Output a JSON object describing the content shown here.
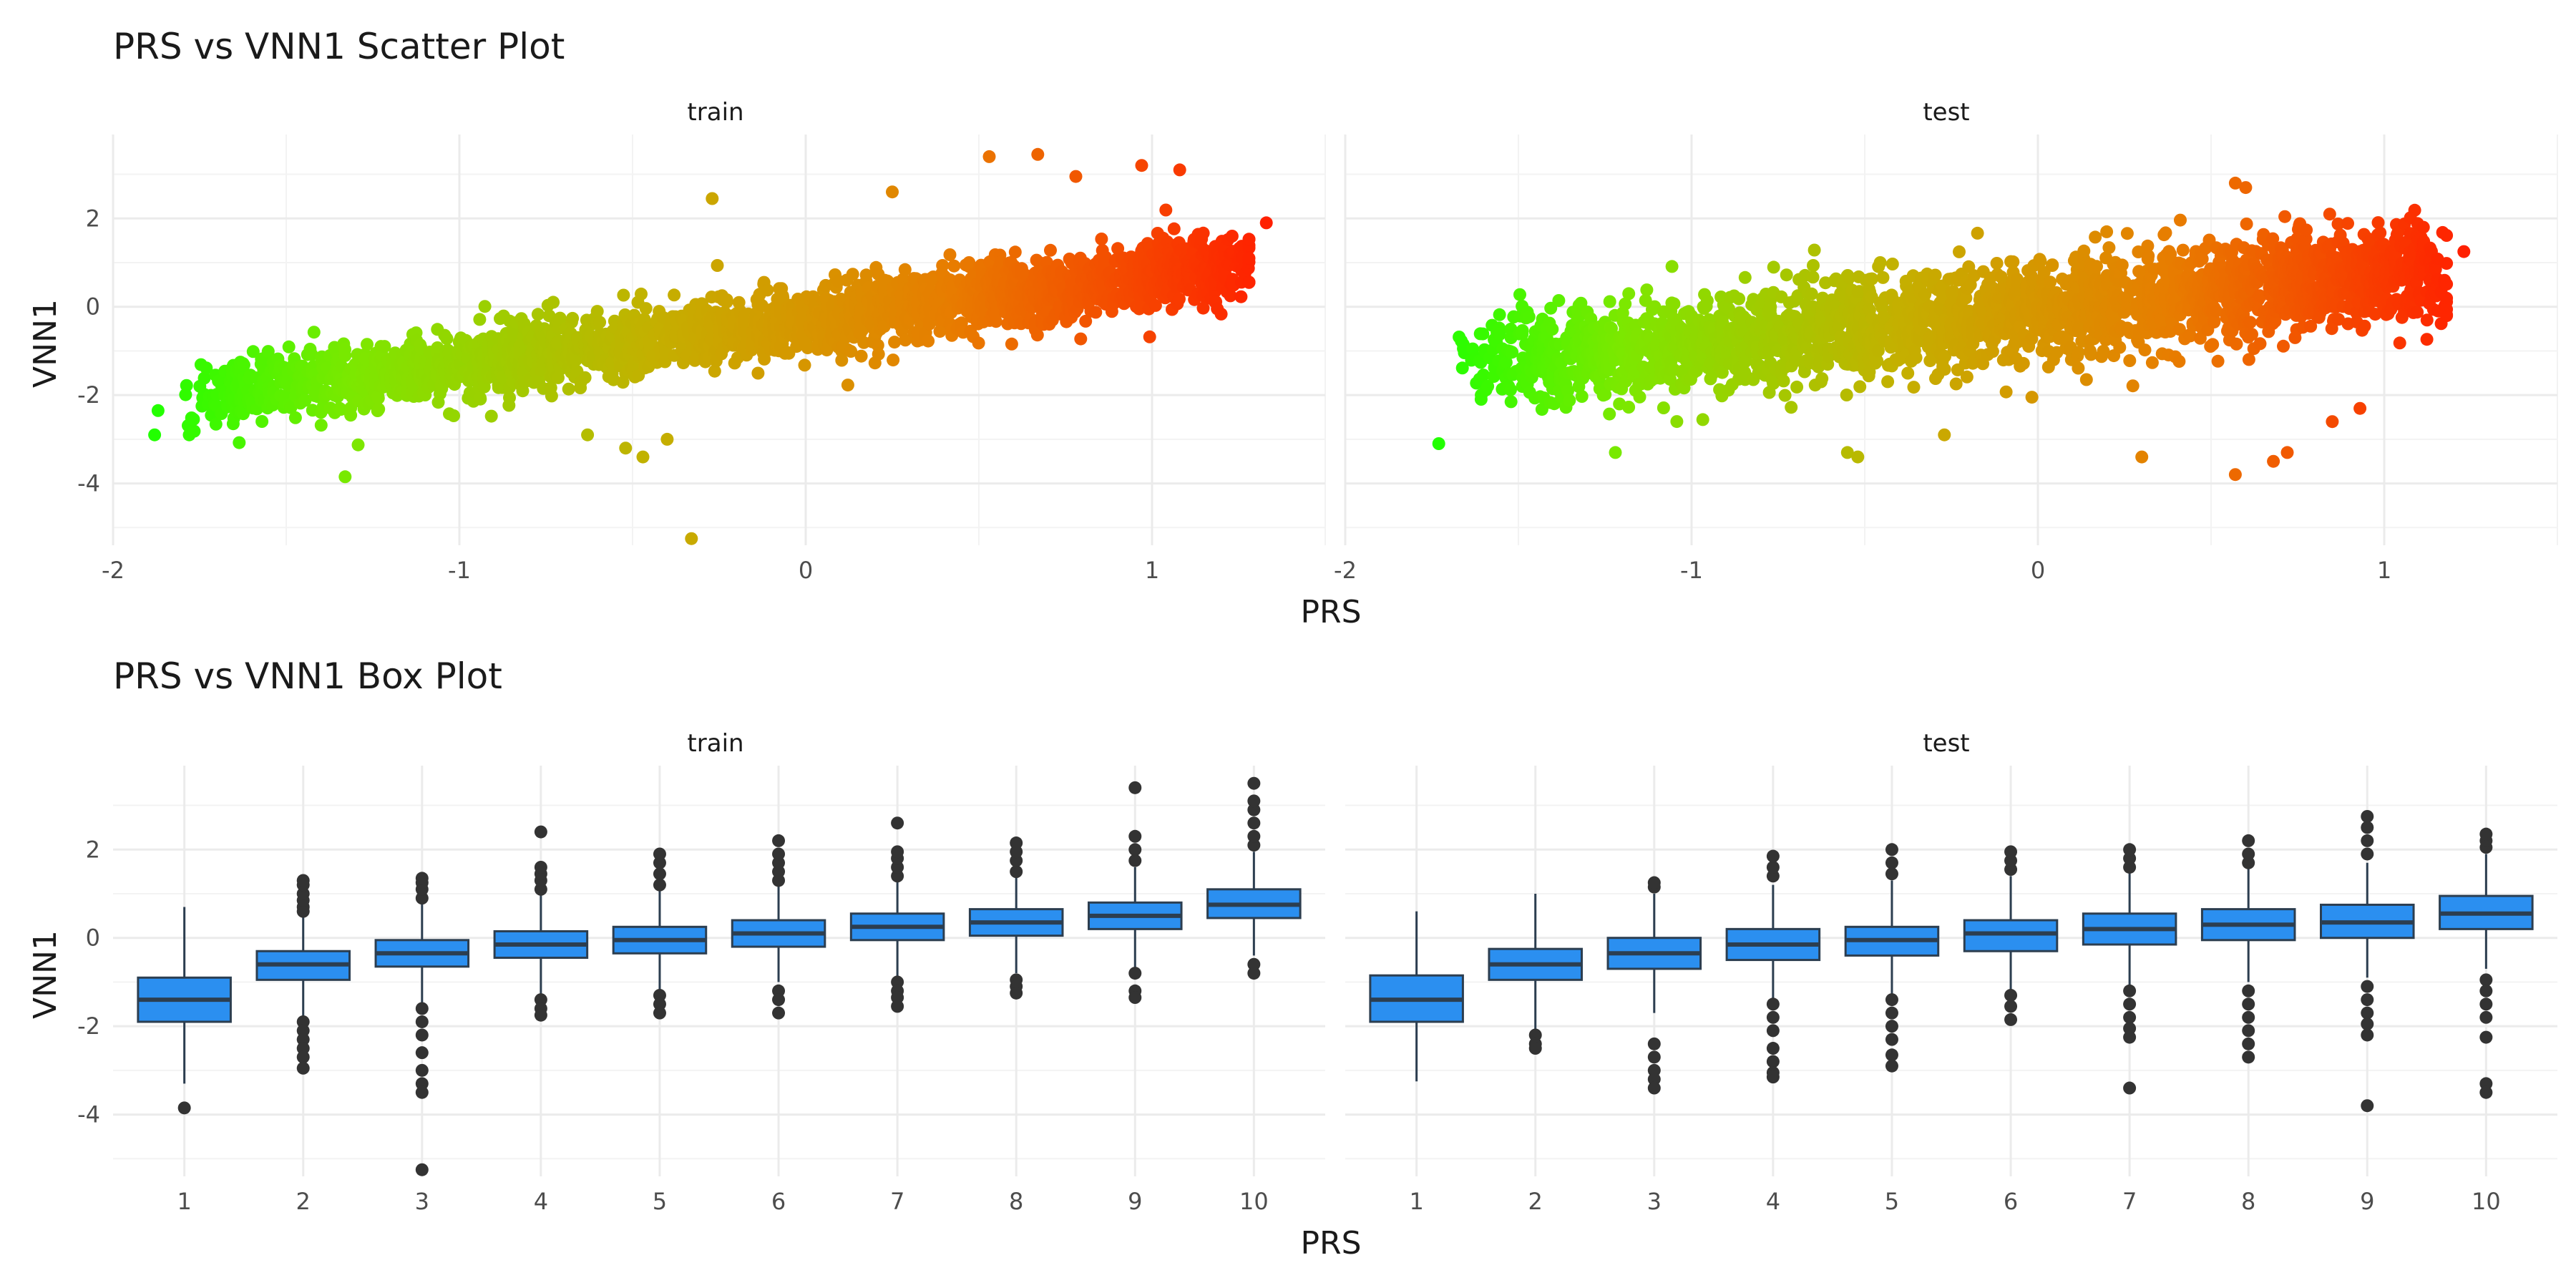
{
  "chart_data": [
    {
      "type": "scatter",
      "title": "PRS vs VNN1 Scatter Plot",
      "xlabel": "PRS",
      "ylabel": "VNN1",
      "grid": true,
      "legend": "none",
      "facets": [
        {
          "label": "train",
          "xlim": [
            -2.0,
            1.5
          ],
          "ylim": [
            -5.4,
            3.9
          ],
          "x_ticks": [
            "-2",
            "-1",
            "0",
            "1"
          ],
          "y_ticks": [
            "2",
            "0",
            "-2",
            "-4"
          ],
          "trend": {
            "slope": 1.0,
            "intercept": -0.3,
            "spread": 0.38
          },
          "x_range": [
            -1.88,
            1.33
          ],
          "outliers": [
            {
              "x": -0.33,
              "y": -5.25
            },
            {
              "x": -1.33,
              "y": -3.85
            },
            {
              "x": -0.47,
              "y": -3.4
            },
            {
              "x": -0.52,
              "y": -3.2
            },
            {
              "x": -0.4,
              "y": -3.0
            },
            {
              "x": -0.63,
              "y": -2.9
            },
            {
              "x": 0.53,
              "y": 3.4
            },
            {
              "x": 0.67,
              "y": 3.45
            },
            {
              "x": 0.97,
              "y": 3.2
            },
            {
              "x": 1.08,
              "y": 3.1
            },
            {
              "x": 0.78,
              "y": 2.95
            },
            {
              "x": -0.27,
              "y": 2.45
            },
            {
              "x": 0.25,
              "y": 2.6
            },
            {
              "x": 1.33,
              "y": 1.9
            },
            {
              "x": -1.87,
              "y": -2.35
            },
            {
              "x": -1.88,
              "y": -2.9
            },
            {
              "x": -1.78,
              "y": -2.9
            }
          ]
        },
        {
          "label": "test",
          "xlim": [
            -2.0,
            1.5
          ],
          "ylim": [
            -5.4,
            3.9
          ],
          "x_ticks": [
            "-2",
            "-1",
            "0",
            "1"
          ],
          "y_ticks": [
            "2",
            "0",
            "-2",
            "-4"
          ],
          "trend": {
            "slope": 0.75,
            "intercept": -0.05,
            "spread": 0.55
          },
          "x_range": [
            -1.73,
            1.23
          ],
          "outliers": [
            {
              "x": 0.57,
              "y": -3.8
            },
            {
              "x": 0.68,
              "y": -3.5
            },
            {
              "x": 0.72,
              "y": -3.3
            },
            {
              "x": 0.3,
              "y": -3.4
            },
            {
              "x": -0.52,
              "y": -3.4
            },
            {
              "x": -0.55,
              "y": -3.3
            },
            {
              "x": -0.27,
              "y": -2.9
            },
            {
              "x": -1.22,
              "y": -3.3
            },
            {
              "x": -1.73,
              "y": -3.1
            },
            {
              "x": 0.6,
              "y": 2.7
            },
            {
              "x": 0.57,
              "y": 2.8
            },
            {
              "x": 1.23,
              "y": 1.25
            },
            {
              "x": 0.93,
              "y": -2.3
            },
            {
              "x": 0.85,
              "y": -2.6
            }
          ]
        }
      ]
    },
    {
      "type": "box",
      "title": "PRS vs VNN1 Box Plot",
      "xlabel": "PRS",
      "ylabel": "VNN1",
      "grid": true,
      "legend": "none",
      "colors": {
        "box_fill": "#2b8ff0",
        "box_stroke": "#2c3e50",
        "outlier": "#333333"
      },
      "categories": [
        "1",
        "2",
        "3",
        "4",
        "5",
        "6",
        "7",
        "8",
        "9",
        "10"
      ],
      "facets": [
        {
          "label": "train",
          "ylim": [
            -5.4,
            3.9
          ],
          "y_ticks": [
            "2",
            "0",
            "-2",
            "-4"
          ],
          "boxes": [
            {
              "q1": -1.9,
              "median": -1.4,
              "q3": -0.9,
              "lower": -3.3,
              "upper": 0.7,
              "outliers": [
                -3.85
              ]
            },
            {
              "q1": -0.95,
              "median": -0.6,
              "q3": -0.3,
              "lower": -1.8,
              "upper": 0.5,
              "outliers": [
                0.6,
                0.7,
                0.85,
                1.0,
                1.2,
                1.3,
                -1.9,
                -2.1,
                -2.3,
                -2.5,
                -2.7,
                -2.95
              ]
            },
            {
              "q1": -0.65,
              "median": -0.35,
              "q3": -0.05,
              "lower": -1.5,
              "upper": 0.8,
              "outliers": [
                0.9,
                1.1,
                1.25,
                1.35,
                -1.6,
                -1.9,
                -2.2,
                -2.6,
                -3.0,
                -3.3,
                -3.5,
                -5.25
              ]
            },
            {
              "q1": -0.45,
              "median": -0.15,
              "q3": 0.15,
              "lower": -1.3,
              "upper": 1.0,
              "outliers": [
                1.1,
                1.3,
                1.45,
                1.6,
                2.4,
                -1.4,
                -1.6,
                -1.75
              ]
            },
            {
              "q1": -0.35,
              "median": -0.05,
              "q3": 0.25,
              "lower": -1.2,
              "upper": 1.1,
              "outliers": [
                1.2,
                1.45,
                1.7,
                1.9,
                -1.3,
                -1.5,
                -1.7
              ]
            },
            {
              "q1": -0.2,
              "median": 0.1,
              "q3": 0.4,
              "lower": -1.0,
              "upper": 1.2,
              "outliers": [
                1.3,
                1.5,
                1.7,
                1.9,
                2.2,
                -1.2,
                -1.4,
                -1.7
              ]
            },
            {
              "q1": -0.05,
              "median": 0.25,
              "q3": 0.55,
              "lower": -0.9,
              "upper": 1.3,
              "outliers": [
                1.4,
                1.6,
                1.8,
                1.95,
                2.6,
                -1.0,
                -1.2,
                -1.35,
                -1.55
              ]
            },
            {
              "q1": 0.05,
              "median": 0.35,
              "q3": 0.65,
              "lower": -0.8,
              "upper": 1.4,
              "outliers": [
                1.5,
                1.75,
                1.95,
                2.15,
                -0.95,
                -1.1,
                -1.25
              ]
            },
            {
              "q1": 0.2,
              "median": 0.5,
              "q3": 0.8,
              "lower": -0.7,
              "upper": 1.6,
              "outliers": [
                1.75,
                2.0,
                2.3,
                3.4,
                -0.8,
                -1.2,
                -1.35
              ]
            },
            {
              "q1": 0.45,
              "median": 0.75,
              "q3": 1.1,
              "lower": -0.4,
              "upper": 1.95,
              "outliers": [
                2.1,
                2.3,
                2.6,
                2.9,
                3.1,
                3.5,
                -0.6,
                -0.8
              ]
            }
          ]
        },
        {
          "label": "test",
          "ylim": [
            -5.4,
            3.9
          ],
          "y_ticks": [
            "2",
            "0",
            "-2",
            "-4"
          ],
          "boxes": [
            {
              "q1": -1.9,
              "median": -1.4,
              "q3": -0.85,
              "lower": -3.25,
              "upper": 0.6,
              "outliers": []
            },
            {
              "q1": -0.95,
              "median": -0.6,
              "q3": -0.25,
              "lower": -2.1,
              "upper": 1.0,
              "outliers": [
                -2.2,
                -2.4,
                -2.5
              ]
            },
            {
              "q1": -0.7,
              "median": -0.35,
              "q3": 0.0,
              "lower": -1.7,
              "upper": 1.0,
              "outliers": [
                1.15,
                1.25,
                -2.4,
                -2.7,
                -3.0,
                -3.2,
                -3.4
              ]
            },
            {
              "q1": -0.5,
              "median": -0.15,
              "q3": 0.2,
              "lower": -1.4,
              "upper": 1.2,
              "outliers": [
                1.4,
                1.6,
                1.85,
                -1.5,
                -1.8,
                -2.1,
                -2.5,
                -2.8,
                -3.05,
                -3.15
              ]
            },
            {
              "q1": -0.4,
              "median": -0.05,
              "q3": 0.25,
              "lower": -1.3,
              "upper": 1.3,
              "outliers": [
                1.45,
                1.7,
                2.0,
                -1.4,
                -1.7,
                -2.0,
                -2.3,
                -2.65,
                -2.9
              ]
            },
            {
              "q1": -0.3,
              "median": 0.1,
              "q3": 0.4,
              "lower": -1.2,
              "upper": 1.4,
              "outliers": [
                1.55,
                1.75,
                1.95,
                -1.3,
                -1.55,
                -1.85
              ]
            },
            {
              "q1": -0.15,
              "median": 0.2,
              "q3": 0.55,
              "lower": -1.1,
              "upper": 1.5,
              "outliers": [
                1.6,
                1.8,
                2.0,
                -1.2,
                -1.5,
                -1.8,
                -2.05,
                -2.25,
                -3.4
              ]
            },
            {
              "q1": -0.05,
              "median": 0.3,
              "q3": 0.65,
              "lower": -1.0,
              "upper": 1.6,
              "outliers": [
                1.7,
                1.9,
                2.2,
                -1.2,
                -1.5,
                -1.8,
                -2.1,
                -2.4,
                -2.7
              ]
            },
            {
              "q1": 0.0,
              "median": 0.35,
              "q3": 0.75,
              "lower": -0.9,
              "upper": 1.7,
              "outliers": [
                1.9,
                2.2,
                2.5,
                2.75,
                -1.1,
                -1.4,
                -1.7,
                -1.95,
                -2.2,
                -3.8
              ]
            },
            {
              "q1": 0.2,
              "median": 0.55,
              "q3": 0.95,
              "lower": -0.7,
              "upper": 1.9,
              "outliers": [
                2.05,
                2.2,
                2.35,
                -0.95,
                -1.2,
                -1.5,
                -1.8,
                -2.25,
                -3.3,
                -3.5
              ]
            }
          ]
        }
      ]
    }
  ]
}
